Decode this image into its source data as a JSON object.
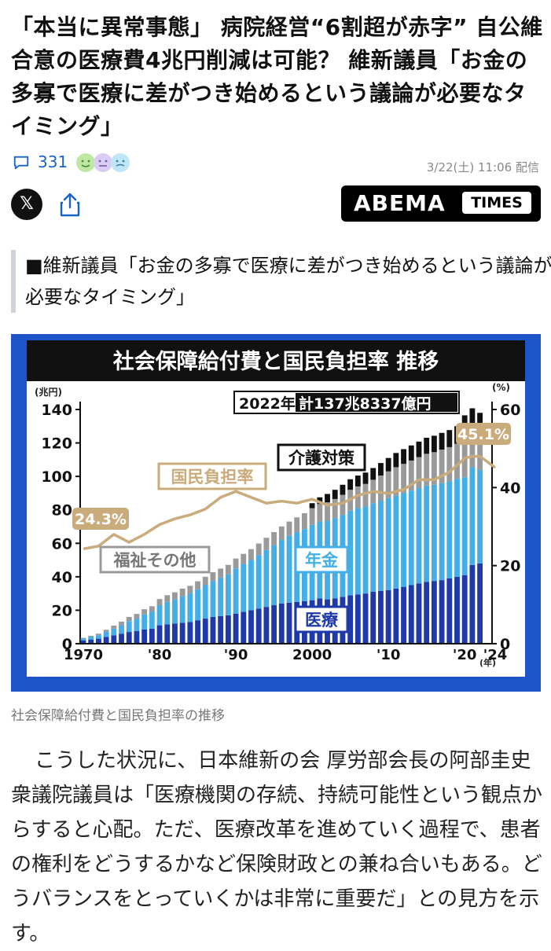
{
  "article": {
    "headline": "「本当に異常事態」 病院経営“6割超が赤字” 自公維合意の医療費4兆円削減は可能？ 維新議員「お金の多寡で医療に差がつき始めるという議論が必要なタイミング」",
    "comment_count": "331",
    "date": "3/22(土) 11:06 配信",
    "x_label": "𝕏",
    "publisher": {
      "name": "ABEMA",
      "badge": "TIMES"
    },
    "subheading": "■維新議員「お金の多寡で医療に差がつき始めるという議論が必要なタイミング」",
    "caption": "社会保障給付費と国民負担率の推移",
    "body": "こうした状況に、日本維新の会 厚労部会長の阿部圭史衆議院議員は「医療機関の存続、持続可能性という観点からすると心配。ただ、医療改革を進めていく過程で、患者の権利をどうするかなど保険財政との兼ね合いもある。どうバランスをとっていくかは非常に重要だ」との見方を示す。"
  },
  "colors": {
    "link_blue": "#1a63c6",
    "chart_bg": "#1d55c9",
    "iryo": "#1f3aa8",
    "nenkin": "#45aee6",
    "fukushi": "#9a9a9a",
    "kaigo": "#111111",
    "ratio_line": "#c9ab7c"
  },
  "chart_data": {
    "type": "bar",
    "title": "社会保障給付費と国民負担率 推移",
    "y_unit": "(兆円)",
    "y2_unit": "(%)",
    "x_unit": "(年)",
    "ylim": [
      0,
      140
    ],
    "y_ticks": [
      "0",
      "20",
      "40",
      "60",
      "80",
      "100",
      "120",
      "140"
    ],
    "y2lim": [
      0,
      60
    ],
    "y2_ticks": [
      "0",
      "20",
      "40",
      "60"
    ],
    "x_ticks": [
      "1970",
      "'80",
      "'90",
      "2000",
      "'10",
      "'20",
      "'24"
    ],
    "years": [
      1970,
      1971,
      1972,
      1973,
      1974,
      1975,
      1976,
      1977,
      1978,
      1979,
      1980,
      1981,
      1982,
      1983,
      1984,
      1985,
      1986,
      1987,
      1988,
      1989,
      1990,
      1991,
      1992,
      1993,
      1994,
      1995,
      1996,
      1997,
      1998,
      1999,
      2000,
      2001,
      2002,
      2003,
      2004,
      2005,
      2006,
      2007,
      2008,
      2009,
      2010,
      2011,
      2012,
      2013,
      2014,
      2015,
      2016,
      2017,
      2018,
      2019,
      2020,
      2021,
      2022
    ],
    "series": [
      {
        "name": "医療",
        "values": [
          2,
          2.5,
          3,
          4,
          5,
          6,
          7,
          7.5,
          8.5,
          9,
          11,
          11.5,
          12,
          12.5,
          13,
          14,
          15,
          16,
          16.5,
          17,
          18,
          19,
          20,
          21,
          22,
          23,
          24,
          24.5,
          25,
          25.5,
          26,
          27,
          26.5,
          27,
          28,
          29,
          29.5,
          30,
          31,
          31.5,
          32,
          33,
          34,
          35,
          36,
          37,
          37.5,
          38,
          39,
          40,
          41,
          47,
          48
        ]
      },
      {
        "name": "年金",
        "values": [
          1,
          1.5,
          2,
          3,
          4,
          5,
          6.5,
          7.5,
          9,
          10,
          12,
          13.5,
          14.5,
          16,
          17,
          18.5,
          20,
          21.5,
          23,
          24.5,
          27,
          28.5,
          30,
          32,
          34,
          36,
          38,
          40,
          41.5,
          43,
          45,
          46,
          47,
          48,
          49,
          50.5,
          51.5,
          52,
          53,
          54,
          55,
          55.5,
          56,
          56.5,
          57,
          57.5,
          57.5,
          58,
          58,
          58.5,
          58.5,
          58.5,
          56
        ]
      },
      {
        "name": "福祉その他",
        "values": [
          0.5,
          0.7,
          1,
          1.3,
          1.8,
          2.2,
          2.5,
          2.8,
          3.1,
          3.4,
          3.7,
          4,
          4.2,
          4.4,
          4.6,
          4.8,
          5,
          5.2,
          5.4,
          5.6,
          5.9,
          6.2,
          6.5,
          6.9,
          7.3,
          7.7,
          8.1,
          8.5,
          9,
          9.5,
          10,
          10.5,
          11,
          11.5,
          12,
          12.5,
          13,
          13.5,
          14,
          15,
          16,
          17,
          17.5,
          18,
          18.5,
          19,
          19.5,
          20,
          20.5,
          21,
          26,
          24,
          22
        ]
      },
      {
        "name": "介護対策",
        "values": [
          0,
          0,
          0,
          0,
          0,
          0,
          0,
          0,
          0,
          0,
          0,
          0,
          0,
          0,
          0,
          0,
          0,
          0,
          0,
          0,
          0,
          0,
          0,
          0,
          0,
          0,
          0,
          0,
          0,
          0,
          3,
          4,
          5,
          5.5,
          6,
          6.3,
          6.5,
          6.8,
          7,
          7.5,
          8,
          8.5,
          8.8,
          9,
          9.3,
          9.6,
          9.8,
          10,
          10.2,
          10.5,
          11,
          11.2,
          12
        ]
      }
    ],
    "ratio_series": {
      "name": "国民負担率",
      "years": [
        1970,
        1972,
        1974,
        1976,
        1978,
        1980,
        1982,
        1984,
        1986,
        1988,
        1990,
        1992,
        1994,
        1996,
        1998,
        2000,
        2002,
        2004,
        2006,
        2008,
        2010,
        2012,
        2014,
        2016,
        2018,
        2020,
        2021,
        2022,
        2024
      ],
      "values": [
        24.3,
        25,
        28,
        26,
        28,
        30.5,
        32,
        33,
        34.5,
        37.5,
        39,
        37.5,
        36,
        36.5,
        36,
        37,
        35.5,
        36,
        38,
        39,
        38.5,
        39.5,
        42,
        42,
        44,
        47.5,
        48,
        48,
        45.1
      ]
    },
    "annotations": [
      "2022年",
      "計137兆8337億円",
      "45.1%",
      "24.3%"
    ],
    "series_labels": [
      "国民負担率",
      "介護対策",
      "年金",
      "福祉その他",
      "医療"
    ]
  }
}
